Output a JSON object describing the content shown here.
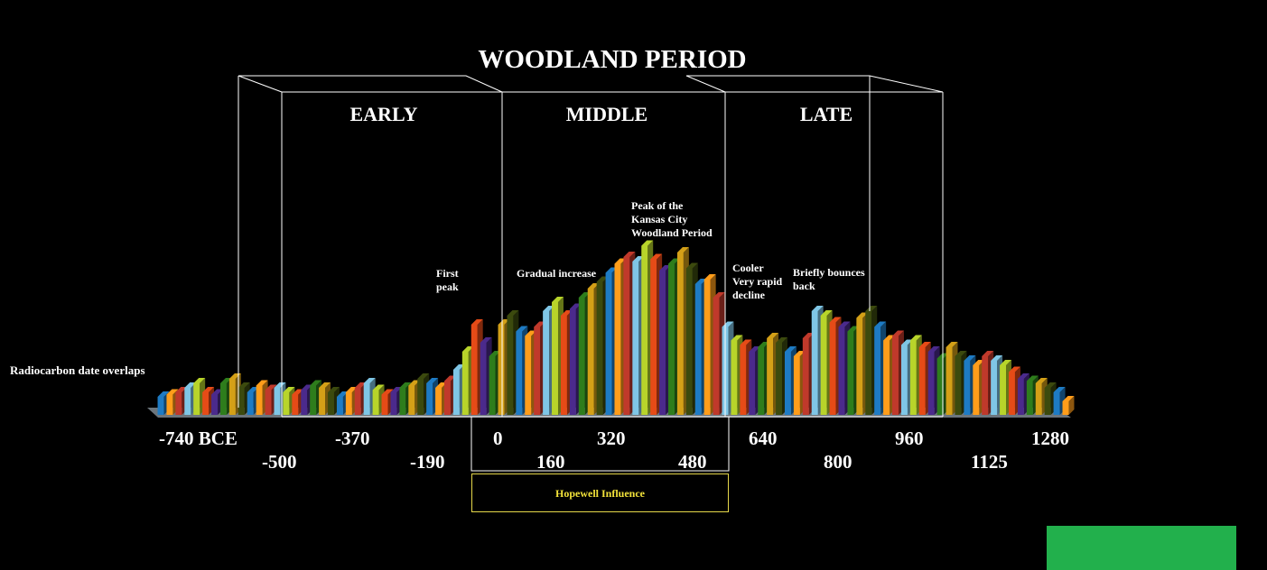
{
  "chart_data": {
    "type": "bar",
    "title": "WOODLAND PERIOD",
    "ylabel": "Radiocarbon date overlaps",
    "periods": [
      {
        "label": "EARLY"
      },
      {
        "label": "MIDDLE"
      },
      {
        "label": "LATE"
      }
    ],
    "x_ticks_upper": [
      "-740 BCE",
      "-370",
      "0",
      "320",
      "640",
      "960",
      "1280"
    ],
    "x_ticks_lower": [
      "-500",
      "-190",
      "160",
      "480",
      "800",
      "1125"
    ],
    "x_range": [
      -740,
      1280
    ],
    "ylim": [
      0,
      10
    ],
    "annotations": {
      "first_peak": "First\npeak",
      "gradual": "Gradual increase",
      "peak": "Peak of the\nKansas City\nWoodland Period",
      "decline": "Cooler\nVery rapid\ndecline",
      "bounce": "Briefly bounces\nback"
    },
    "range_label": "Hopewell Influence",
    "series_colors": [
      "#1e7bc4",
      "#ff9d1a",
      "#c0392b",
      "#7fc6e6",
      "#b8d42a",
      "#e64b17",
      "#4b2a8c",
      "#2e7d1c",
      "#d4a017",
      "#3c4a0e"
    ],
    "x": [
      -740,
      -720,
      -700,
      -680,
      -660,
      -640,
      -620,
      -600,
      -580,
      -560,
      -540,
      -520,
      -500,
      -480,
      -460,
      -440,
      -420,
      -400,
      -380,
      -360,
      -340,
      -320,
      -300,
      -280,
      -260,
      -240,
      -220,
      -200,
      -180,
      -160,
      -140,
      -120,
      -100,
      -80,
      -60,
      -40,
      -20,
      0,
      20,
      40,
      60,
      80,
      100,
      120,
      140,
      160,
      180,
      200,
      220,
      240,
      260,
      280,
      300,
      320,
      340,
      360,
      380,
      400,
      420,
      440,
      460,
      480,
      500,
      520,
      540,
      560,
      580,
      600,
      620,
      640,
      660,
      680,
      700,
      720,
      740,
      760,
      780,
      800,
      820,
      840,
      860,
      880,
      900,
      920,
      940,
      960,
      980,
      1000,
      1020,
      1040,
      1060,
      1080,
      1100,
      1120,
      1140,
      1160,
      1180,
      1200,
      1220,
      1240,
      1260,
      1280
    ],
    "values": [
      0.8,
      0.9,
      1.0,
      1.2,
      1.4,
      1.0,
      0.9,
      1.4,
      1.6,
      1.2,
      1.0,
      1.3,
      1.1,
      1.2,
      1.0,
      0.9,
      1.1,
      1.3,
      1.2,
      1.0,
      0.8,
      1.0,
      1.2,
      1.4,
      1.1,
      0.9,
      1.0,
      1.2,
      1.3,
      1.6,
      1.4,
      1.2,
      1.5,
      2.0,
      2.8,
      4.0,
      3.2,
      2.6,
      4.0,
      4.4,
      3.7,
      3.5,
      3.9,
      4.6,
      5.0,
      4.4,
      4.7,
      5.2,
      5.6,
      5.9,
      6.3,
      6.7,
      7.0,
      6.8,
      7.5,
      6.9,
      6.4,
      6.7,
      7.2,
      6.5,
      5.8,
      6.0,
      5.2,
      3.9,
      3.3,
      3.1,
      2.8,
      3.0,
      3.4,
      3.2,
      2.8,
      2.6,
      3.4,
      4.6,
      4.4,
      4.1,
      3.9,
      3.7,
      4.3,
      4.6,
      3.9,
      3.3,
      3.5,
      3.1,
      3.3,
      3.0,
      2.8,
      2.5,
      3.0,
      2.6,
      2.4,
      2.2,
      2.6,
      2.4,
      2.2,
      1.9,
      1.6,
      1.5,
      1.4,
      1.2,
      1.0,
      0.6
    ]
  }
}
